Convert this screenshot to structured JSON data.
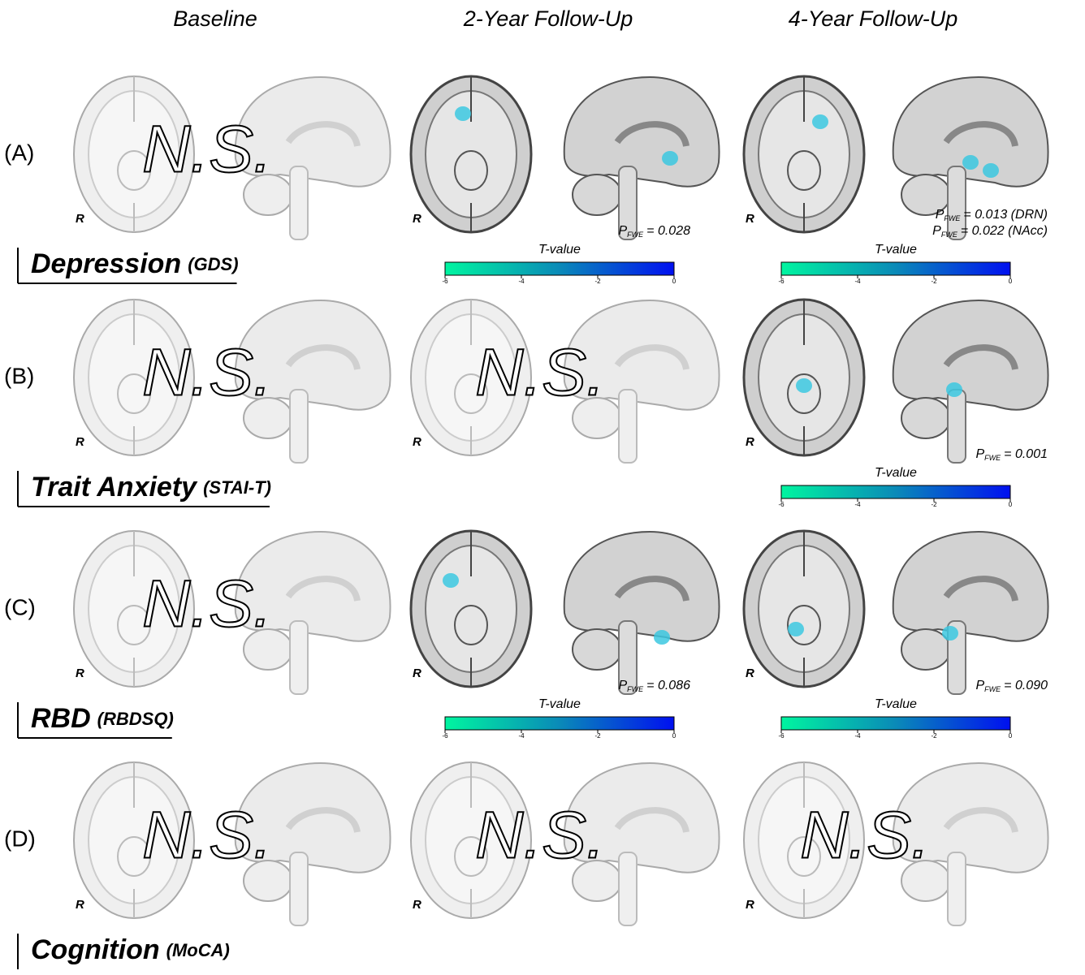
{
  "columns": [
    "Baseline",
    "2-Year Follow-Up",
    "4-Year Follow-Up"
  ],
  "orientation_label": "R",
  "colorbar": {
    "label": "T-value",
    "lim": [
      -6,
      0
    ],
    "ticks": [
      -6,
      -4,
      -2,
      0
    ]
  },
  "rows": [
    {
      "label": "(A)",
      "measure": "Depression",
      "scale": "(GDS)",
      "cells": [
        {
          "result": "N.S."
        },
        {
          "p_values": [
            {
              "symbol": "P",
              "subscript": "FWE",
              "text": "= 0.028"
            }
          ]
        },
        {
          "p_values": [
            {
              "symbol": "P",
              "subscript": "FWE",
              "text": "= 0.013 (DRN)"
            },
            {
              "symbol": "P",
              "subscript": "FWE",
              "text": "= 0.022 (NAcc)"
            }
          ]
        }
      ]
    },
    {
      "label": "(B)",
      "measure": "Trait Anxiety",
      "scale": "(STAI-T)",
      "cells": [
        {
          "result": "N.S."
        },
        {
          "result": "N.S."
        },
        {
          "p_values": [
            {
              "symbol": "P",
              "subscript": "FWE",
              "text": "= 0.001"
            }
          ]
        }
      ]
    },
    {
      "label": "(C)",
      "measure": "RBD",
      "scale": "(RBDSQ)",
      "cells": [
        {
          "result": "N.S."
        },
        {
          "p_values": [
            {
              "symbol": "P",
              "subscript": "FWE",
              "text": "= 0.086"
            }
          ]
        },
        {
          "p_values": [
            {
              "symbol": "P",
              "subscript": "FWE",
              "text": "= 0.090"
            }
          ]
        }
      ]
    },
    {
      "label": "(D)",
      "measure": "Cognition",
      "scale": "(MoCA)",
      "cells": [
        {
          "result": "N.S."
        },
        {
          "result": "N.S."
        },
        {
          "result": "N.S."
        }
      ]
    }
  ]
}
